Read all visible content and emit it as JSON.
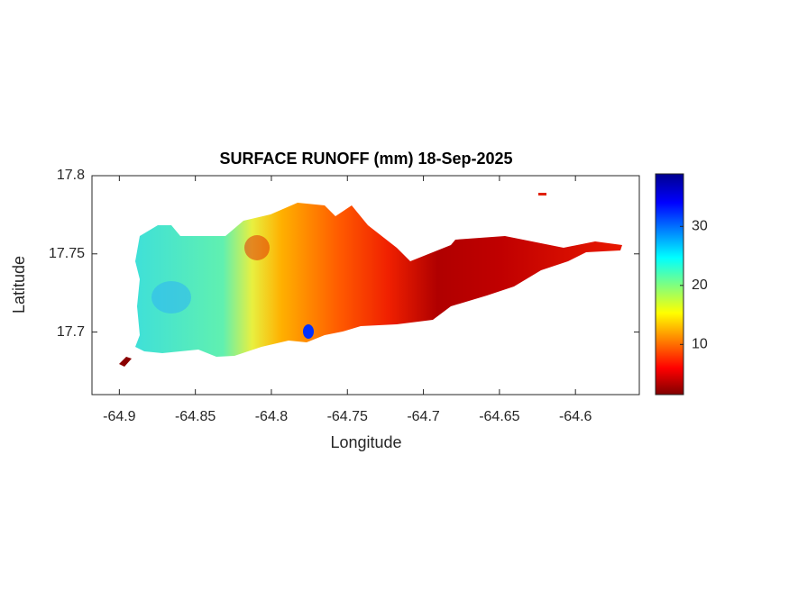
{
  "chart_data": {
    "type": "heatmap",
    "title": "SURFACE RUNOFF (mm) 18-Sep-2025",
    "xlabel": "Longitude",
    "ylabel": "Latitude",
    "xlim": [
      -64.918,
      -64.558
    ],
    "xticks": [
      -64.9,
      -64.85,
      -64.8,
      -64.75,
      -64.7,
      -64.65,
      -64.6
    ],
    "ylim": [
      17.66,
      17.8
    ],
    "yticks": [
      17.7,
      17.75,
      17.8
    ],
    "colormap": "jet",
    "clim": [
      1.5,
      38.9
    ],
    "colorbar_ticks": [
      10,
      20,
      30
    ]
  }
}
